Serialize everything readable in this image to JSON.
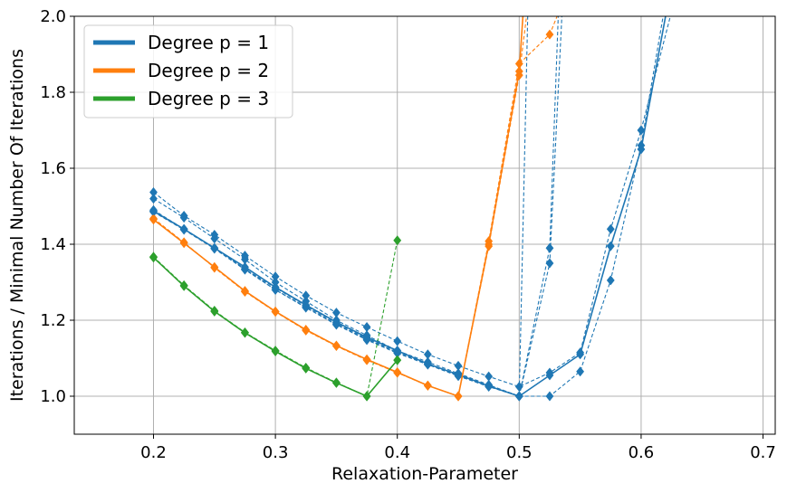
{
  "chart_data": {
    "type": "line",
    "title": "",
    "xlabel": "Relaxation-Parameter",
    "ylabel": "Iterations / Minimal Number Of Iterations",
    "xlim": [
      0.135,
      0.71
    ],
    "ylim": [
      0.9,
      2.0
    ],
    "x_ticks": [
      "0.2",
      "0.3",
      "0.4",
      "0.5",
      "0.6",
      "0.7"
    ],
    "y_ticks": [
      "1.0",
      "1.2",
      "1.4",
      "1.6",
      "1.8",
      "2.0"
    ],
    "grid": true,
    "legend_position": "top-left",
    "legend": [
      {
        "label": "Degree p = 1",
        "color": "#1f77b4"
      },
      {
        "label": "Degree p = 2",
        "color": "#ff7f0e"
      },
      {
        "label": "Degree p = 3",
        "color": "#2ca02c"
      }
    ],
    "series": [
      {
        "name": "Degree p = 1",
        "degree": 1,
        "color": "#1f77b4",
        "style": "solid",
        "x": [
          0.2,
          0.225,
          0.25,
          0.275,
          0.3,
          0.325,
          0.35,
          0.375,
          0.4,
          0.425,
          0.45,
          0.475,
          0.5,
          0.525,
          0.55,
          0.575,
          0.6,
          0.62
        ],
        "y": [
          1.487,
          1.44,
          1.39,
          1.34,
          1.287,
          1.24,
          1.195,
          1.155,
          1.12,
          1.085,
          1.057,
          1.027,
          1.0,
          1.055,
          1.11,
          1.395,
          1.65,
          2.0
        ]
      },
      {
        "name": "",
        "degree": 1,
        "color": "#1f77b4",
        "style": "dashed",
        "x": [
          0.2,
          0.225,
          0.25,
          0.275,
          0.3,
          0.325,
          0.35,
          0.375,
          0.4,
          0.425,
          0.45,
          0.475,
          0.5,
          0.525,
          0.55,
          0.575,
          0.6,
          0.624
        ],
        "y": [
          1.537,
          1.475,
          1.425,
          1.37,
          1.315,
          1.265,
          1.22,
          1.182,
          1.145,
          1.11,
          1.08,
          1.052,
          1.025,
          1.062,
          1.115,
          1.44,
          1.7,
          2.0
        ]
      },
      {
        "name": "",
        "degree": 1,
        "color": "#1f77b4",
        "style": "dashed",
        "x": [
          0.2,
          0.225,
          0.25,
          0.275,
          0.3,
          0.325,
          0.35,
          0.375,
          0.4,
          0.425,
          0.45,
          0.475,
          0.5,
          0.525,
          0.55,
          0.575,
          0.6,
          0.618
        ],
        "y": [
          1.52,
          1.47,
          1.415,
          1.36,
          1.3,
          1.25,
          1.2,
          1.16,
          1.12,
          1.09,
          1.06,
          1.03,
          1.0,
          1.0,
          1.065,
          1.305,
          1.66,
          2.0
        ]
      },
      {
        "name": "",
        "degree": 1,
        "color": "#1f77b4",
        "style": "dashed",
        "x": [
          0.2,
          0.225,
          0.25,
          0.275,
          0.3,
          0.325,
          0.35,
          0.375,
          0.4,
          0.425,
          0.45,
          0.475,
          0.5,
          0.525,
          0.532
        ],
        "y": [
          1.49,
          1.44,
          1.39,
          1.335,
          1.28,
          1.235,
          1.19,
          1.15,
          1.115,
          1.085,
          1.055,
          1.027,
          1.0,
          1.39,
          2.0
        ]
      },
      {
        "name": "",
        "degree": 1,
        "color": "#1f77b4",
        "style": "dashed",
        "x": [
          0.2,
          0.225,
          0.25,
          0.275,
          0.3,
          0.325,
          0.35,
          0.375,
          0.4,
          0.425,
          0.45,
          0.475,
          0.5,
          0.525,
          0.535
        ],
        "y": [
          1.485,
          1.438,
          1.388,
          1.333,
          1.28,
          1.233,
          1.188,
          1.148,
          1.113,
          1.083,
          1.053,
          1.025,
          1.0,
          1.35,
          2.0
        ]
      },
      {
        "name": "",
        "degree": 1,
        "color": "#1f77b4",
        "style": "dashed",
        "x": [
          0.2,
          0.225,
          0.25,
          0.275,
          0.3,
          0.325,
          0.35,
          0.375,
          0.4,
          0.425,
          0.45,
          0.475,
          0.5,
          0.507
        ],
        "y": [
          1.487,
          1.44,
          1.39,
          1.335,
          1.285,
          1.238,
          1.193,
          1.152,
          1.118,
          1.085,
          1.055,
          1.027,
          1.0,
          2.0
        ]
      },
      {
        "name": "Degree p = 2",
        "degree": 2,
        "color": "#ff7f0e",
        "style": "solid",
        "x": [
          0.2,
          0.225,
          0.25,
          0.275,
          0.3,
          0.325,
          0.35,
          0.375,
          0.4,
          0.425,
          0.45,
          0.475,
          0.5,
          0.503
        ],
        "y": [
          1.465,
          1.403,
          1.34,
          1.277,
          1.223,
          1.175,
          1.133,
          1.097,
          1.063,
          1.028,
          1.0,
          1.4,
          1.855,
          2.0
        ]
      },
      {
        "name": "",
        "degree": 2,
        "color": "#ff7f0e",
        "style": "dashed",
        "x": [
          0.2,
          0.225,
          0.25,
          0.275,
          0.3,
          0.325,
          0.35,
          0.375,
          0.4,
          0.425,
          0.45,
          0.475,
          0.5,
          0.525,
          0.531
        ],
        "y": [
          1.468,
          1.405,
          1.338,
          1.275,
          1.222,
          1.173,
          1.132,
          1.095,
          1.062,
          1.028,
          1.0,
          1.408,
          1.875,
          1.952,
          2.0
        ]
      },
      {
        "name": "",
        "degree": 2,
        "color": "#ff7f0e",
        "style": "dashed",
        "x": [
          0.2,
          0.225,
          0.25,
          0.275,
          0.3,
          0.325,
          0.35,
          0.375,
          0.4,
          0.425,
          0.45,
          0.475,
          0.5,
          0.506
        ],
        "y": [
          1.466,
          1.404,
          1.339,
          1.276,
          1.223,
          1.174,
          1.133,
          1.096,
          1.062,
          1.028,
          1.0,
          1.395,
          1.845,
          2.0
        ]
      },
      {
        "name": "Degree p = 3",
        "degree": 3,
        "color": "#2ca02c",
        "style": "solid",
        "x": [
          0.2,
          0.225,
          0.25,
          0.275,
          0.3,
          0.325,
          0.35,
          0.375,
          0.4
        ],
        "y": [
          1.365,
          1.29,
          1.223,
          1.167,
          1.118,
          1.073,
          1.035,
          1.0,
          1.095
        ]
      },
      {
        "name": "",
        "degree": 3,
        "color": "#2ca02c",
        "style": "dashed",
        "x": [
          0.2,
          0.225,
          0.25,
          0.275,
          0.3,
          0.325,
          0.35,
          0.375,
          0.4
        ],
        "y": [
          1.367,
          1.292,
          1.225,
          1.168,
          1.12,
          1.075,
          1.036,
          1.0,
          1.41
        ]
      },
      {
        "name": "",
        "degree": 3,
        "color": "#2ca02c",
        "style": "dashed",
        "x": [
          0.2,
          0.225,
          0.25,
          0.275,
          0.3,
          0.325,
          0.35,
          0.375,
          0.4
        ],
        "y": [
          1.366,
          1.291,
          1.224,
          1.167,
          1.119,
          1.074,
          1.035,
          1.0,
          1.095
        ]
      }
    ]
  }
}
